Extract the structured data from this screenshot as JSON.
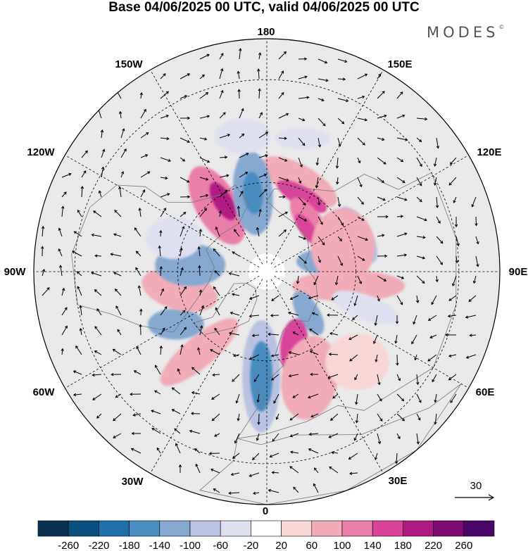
{
  "title": "Base 04/06/2025 00 UTC, valid 04/06/2025 00 UTC",
  "brand": "MODES",
  "brand_mark": "©",
  "map": {
    "projection": "north-polar-stereographic",
    "longitude_labels": {
      "lon180": "180",
      "lon150e": "150E",
      "lon120e": "120E",
      "lon90e": "90E",
      "lon60e": "60E",
      "lon30e": "30E",
      "lon0": "0",
      "lon30w": "30W",
      "lon60w": "60W",
      "lon90w": "90W",
      "lon120w": "120W",
      "lon150w": "150W"
    },
    "background_color": "#e9e9e9",
    "coastline_color": "#777777"
  },
  "wind_reference": {
    "label": "30"
  },
  "colorbar": {
    "labels": [
      "-260",
      "-220",
      "-180",
      "-140",
      "-100",
      "-60",
      "-20",
      "20",
      "60",
      "100",
      "140",
      "180",
      "220",
      "260"
    ],
    "colors": [
      "#08304f",
      "#0b4f7e",
      "#1f6fa8",
      "#4a8dc0",
      "#86a9d2",
      "#b9c2e0",
      "#dfe0ef",
      "#ffffff",
      "#f7d6d6",
      "#f2abb8",
      "#ea7faa",
      "#d94499",
      "#b01a83",
      "#7e0a74",
      "#4b066a"
    ]
  },
  "anomalies": [
    {
      "lon": 160,
      "lat": 58,
      "rx": 60,
      "ry": 24,
      "rot": 30,
      "v": 75
    },
    {
      "lon": 155,
      "lat": 62,
      "rx": 40,
      "ry": 14,
      "rot": 30,
      "v": 150
    },
    {
      "lon": 137,
      "lat": 68,
      "rx": 45,
      "ry": 18,
      "rot": 55,
      "v": 120
    },
    {
      "lon": 137,
      "lat": 70,
      "rx": 25,
      "ry": 10,
      "rot": 55,
      "v": 170
    },
    {
      "lon": 112,
      "lat": 57,
      "rx": 45,
      "ry": 18,
      "rot": 60,
      "v": -80
    },
    {
      "lon": 100,
      "lat": 70,
      "rx": 40,
      "ry": 18,
      "rot": 0,
      "v": -110
    },
    {
      "lon": 108,
      "lat": 63,
      "rx": 45,
      "ry": 55,
      "rot": 0,
      "v": 60
    },
    {
      "lon": 80,
      "lat": 62,
      "rx": 80,
      "ry": 22,
      "rot": 0,
      "v": 60
    },
    {
      "lon": 70,
      "lat": 55,
      "rx": 50,
      "ry": 18,
      "rot": 20,
      "v": -40
    },
    {
      "lon": 45,
      "lat": 70,
      "rx": 35,
      "ry": 16,
      "rot": 60,
      "v": -110
    },
    {
      "lon": 20,
      "lat": 63,
      "rx": 20,
      "ry": 40,
      "rot": 5,
      "v": 150
    },
    {
      "lon": 22,
      "lat": 52,
      "rx": 40,
      "ry": 60,
      "rot": 10,
      "v": 70
    },
    {
      "lon": 45,
      "lat": 48,
      "rx": 45,
      "ry": 40,
      "rot": 0,
      "v": 50
    },
    {
      "lon": -3,
      "lat": 55,
      "rx": 27,
      "ry": 80,
      "rot": 0,
      "v": -100
    },
    {
      "lon": -3,
      "lat": 55,
      "rx": 16,
      "ry": 50,
      "rot": 0,
      "v": -160
    },
    {
      "lon": -40,
      "lat": 55,
      "rx": 70,
      "ry": 22,
      "rot": -40,
      "v": 75
    },
    {
      "lon": -60,
      "lat": 55,
      "rx": 40,
      "ry": 22,
      "rot": 0,
      "v": -120
    },
    {
      "lon": -78,
      "lat": 60,
      "rx": 55,
      "ry": 28,
      "rot": 15,
      "v": 95
    },
    {
      "lon": -95,
      "lat": 64,
      "rx": 50,
      "ry": 30,
      "rot": 0,
      "v": -140
    },
    {
      "lon": -110,
      "lat": 57,
      "rx": 40,
      "ry": 30,
      "rot": 0,
      "v": -60
    },
    {
      "lon": -143,
      "lat": 62,
      "rx": 30,
      "ry": 62,
      "rot": -30,
      "v": 130
    },
    {
      "lon": -148,
      "lat": 62,
      "rx": 13,
      "ry": 30,
      "rot": -30,
      "v": 185
    },
    {
      "lon": -170,
      "lat": 63,
      "rx": 28,
      "ry": 60,
      "rot": -5,
      "v": -110
    },
    {
      "lon": -170,
      "lat": 63,
      "rx": 14,
      "ry": 30,
      "rot": -5,
      "v": -150
    },
    {
      "lon": 165,
      "lat": 45,
      "rx": 40,
      "ry": 15,
      "rot": 0,
      "v": -40
    },
    {
      "lon": -170,
      "lat": 45,
      "rx": 40,
      "ry": 25,
      "rot": 0,
      "v": -45
    }
  ]
}
